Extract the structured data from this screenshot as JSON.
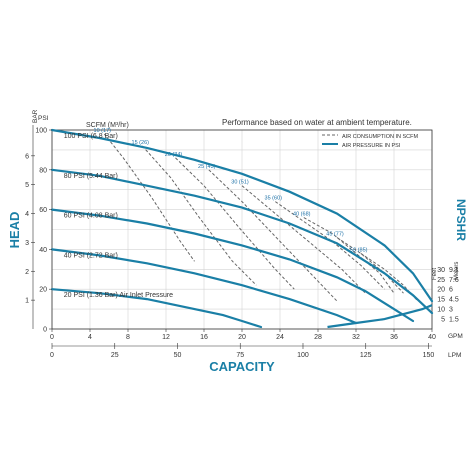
{
  "chart_data": {
    "type": "line",
    "title": "Performance based on water at ambient temperature.",
    "xlabel": "CAPACITY",
    "ylabel": "HEAD",
    "y2label": "NPSHR",
    "x_units_primary": "GPM",
    "x_units_secondary": "LPM",
    "y_units_primary": "PSI",
    "y_units_secondary": "BAR",
    "npshr_units": [
      "Feet",
      "Meters"
    ],
    "xlim": [
      0,
      40
    ],
    "ylim": [
      0,
      100
    ],
    "x_ticks_gpm": [
      "0",
      "4",
      "8",
      "12",
      "16",
      "20",
      "24",
      "28",
      "32",
      "36",
      "40"
    ],
    "x_ticks_lpm": [
      "0",
      "25",
      "50",
      "75",
      "100",
      "125",
      "150"
    ],
    "y_ticks_psi": [
      "0",
      "20",
      "40",
      "60",
      "80",
      "100"
    ],
    "y_ticks_bar": [
      "1",
      "2",
      "3",
      "4",
      "5",
      "6"
    ],
    "npshr_ticks": [
      {
        "feet": "30",
        "meters": "9.1"
      },
      {
        "feet": "25",
        "meters": "7.6"
      },
      {
        "feet": "20",
        "meters": "6"
      },
      {
        "feet": "15",
        "meters": "4.5"
      },
      {
        "feet": "10",
        "meters": "3"
      },
      {
        "feet": "5",
        "meters": "1.5"
      }
    ],
    "legend": {
      "placement": "top-right",
      "items": [
        {
          "label": "AIR CONSUMPTION IN SCFM",
          "style": "dashed"
        },
        {
          "label": "AIR PRESSURE IN PSI",
          "style": "solid"
        }
      ]
    },
    "scfm_header": "SCFM (M³/hr)",
    "colors": {
      "solid": "#1a7fa6",
      "dashed": "#666666",
      "accent": "#1a7fa6"
    },
    "grid": true,
    "series": [
      {
        "name": "100 PSI (6.8 Bar)",
        "x": [
          0,
          5,
          10,
          15,
          20,
          25,
          30,
          35,
          38,
          40
        ],
        "y": [
          100,
          96,
          91,
          85,
          78,
          69,
          58,
          42,
          28,
          14
        ]
      },
      {
        "name": "80 PSI (5.44 Bar)",
        "x": [
          0,
          5,
          10,
          15,
          20,
          25,
          30,
          35,
          38,
          40
        ],
        "y": [
          80,
          77,
          72,
          67,
          61,
          53,
          43,
          28,
          17,
          8
        ]
      },
      {
        "name": "60 PSI (4.08 Bar)",
        "x": [
          0,
          5,
          10,
          15,
          20,
          25,
          30,
          33,
          36,
          38
        ],
        "y": [
          60,
          57,
          53,
          48,
          42,
          35,
          26,
          19,
          10,
          4
        ]
      },
      {
        "name": "40 PSI (2.72 Bar)",
        "x": [
          0,
          5,
          10,
          15,
          20,
          25,
          30,
          32
        ],
        "y": [
          40,
          37,
          33,
          28,
          22,
          15,
          7,
          3
        ]
      },
      {
        "name": "20 PSI (1.36 Bar) Air Inlet Pressure",
        "x": [
          0,
          5,
          10,
          15,
          18,
          20,
          22
        ],
        "y": [
          20,
          18,
          15,
          10,
          7,
          4,
          1
        ]
      }
    ],
    "npshr_curve": {
      "x": [
        29,
        32,
        35,
        37,
        39,
        40
      ],
      "y": [
        1,
        3,
        5,
        7.5,
        10,
        12
      ]
    },
    "air_consumption": [
      {
        "label": "10 (17)",
        "x": [
          5.5,
          7.5,
          10.5,
          13.5,
          15
        ],
        "y": [
          98,
          86,
          66,
          44,
          34
        ]
      },
      {
        "label": "15 (26)",
        "x": [
          9.5,
          12.5,
          15.5,
          19,
          21.5
        ],
        "y": [
          92,
          76,
          56,
          34,
          22
        ]
      },
      {
        "label": "20 (34)",
        "x": [
          13,
          16,
          19.5,
          23.5,
          25.5
        ],
        "y": [
          86,
          72,
          52,
          30,
          20
        ]
      },
      {
        "label": "25 (43)",
        "x": [
          16.5,
          20,
          24,
          28,
          30
        ],
        "y": [
          80,
          64,
          44,
          24,
          14
        ]
      },
      {
        "label": "30 (51)",
        "x": [
          20,
          23.5,
          27,
          30.5,
          33
        ],
        "y": [
          72,
          58,
          44,
          30,
          18
        ]
      },
      {
        "label": "35 (60)",
        "x": [
          23.5,
          26.5,
          29.5,
          32.5,
          35
        ],
        "y": [
          64,
          54,
          44,
          32,
          20
        ]
      },
      {
        "label": "40 (68)",
        "x": [
          26.5,
          29.5,
          32,
          34.5,
          36
        ],
        "y": [
          56,
          48,
          38,
          28,
          18
        ]
      },
      {
        "label": "45 (77)",
        "x": [
          30,
          32.5,
          35,
          37
        ],
        "y": [
          46,
          38,
          28,
          18
        ]
      },
      {
        "label": "50 (85)",
        "x": [
          32.5,
          35,
          37,
          38.5
        ],
        "y": [
          38,
          30,
          22,
          14
        ]
      }
    ]
  }
}
